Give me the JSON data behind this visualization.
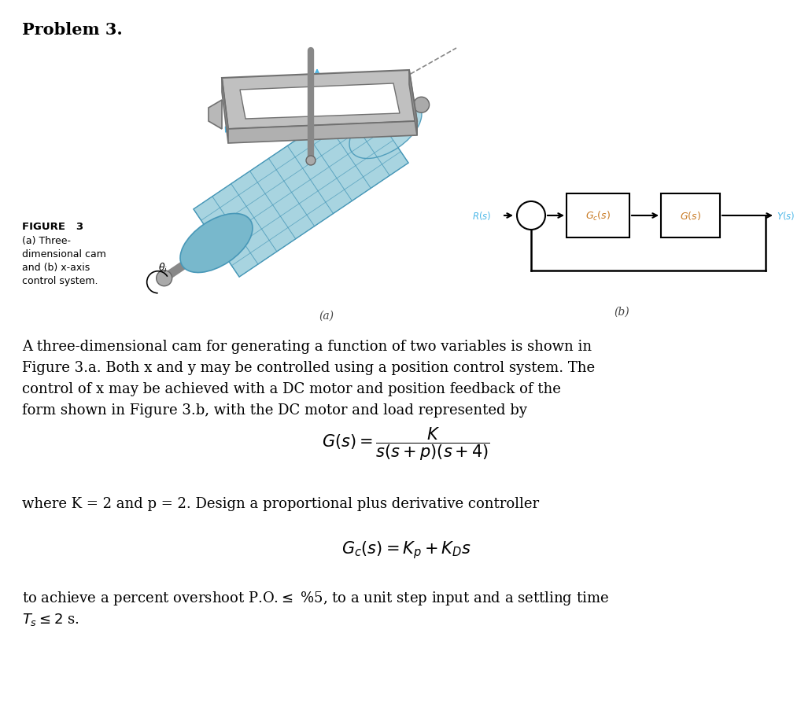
{
  "title": "Problem 3.",
  "bg_color": "#ffffff",
  "title_font_size": 15,
  "body_font_size": 13,
  "figure_caption_bold": "FIGURE   3",
  "figure_caption_lines": [
    "(a) Three-",
    "dimensional cam",
    "and (b) x-axis",
    "control system."
  ],
  "paragraph1": "A three-dimensional cam for generating a function of two variables is shown in\nFigure 3.a. Both x and y may be controlled using a position control system. The\ncontrol of x may be achieved with a DC motor and position feedback of the\nform shown in Figure 3.b, with the DC motor and load represented by",
  "paragraph2": "where K = 2 and p = 2. Design a proportional plus derivative controller",
  "paragraph3_line1": "to achieve a percent overshoot P.O.",
  "paragraph3_line2": "T_s",
  "cyan_color": "#4db8e8",
  "orange_color": "#c87820",
  "block_edge_color": "#000000",
  "label_a": "(a)",
  "label_b": "(b)",
  "gray_frame": "#a0a0a0",
  "gray_dark": "#707070",
  "cam_blue_light": "#a8d4e0",
  "cam_blue_mid": "#78b8cc",
  "cam_blue_dark": "#4898b8"
}
